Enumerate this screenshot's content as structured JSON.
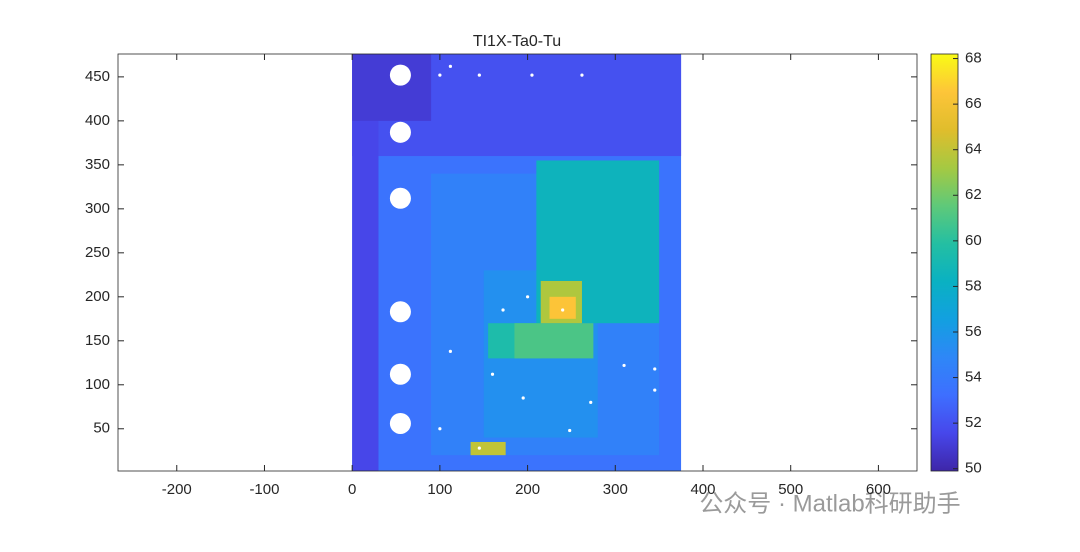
{
  "chart_data": {
    "type": "heatmap",
    "title": "TI1X-Ta0-Tu",
    "xlim": [
      -267,
      644
    ],
    "ylim": [
      2,
      476
    ],
    "xticks": [
      -200,
      -100,
      0,
      100,
      200,
      300,
      400,
      500,
      600
    ],
    "yticks": [
      50,
      100,
      150,
      200,
      250,
      300,
      350,
      400,
      450
    ],
    "colormap": "parula",
    "clim": [
      49.9,
      68.2
    ],
    "cticks": [
      50,
      52,
      54,
      56,
      58,
      60,
      62,
      64,
      66,
      68
    ],
    "regions": [
      {
        "x": [
          0,
          375
        ],
        "y": [
          2,
          476
        ],
        "value": 53.5
      },
      {
        "x": [
          0,
          375
        ],
        "y": [
          360,
          476
        ],
        "value": 52
      },
      {
        "x": [
          0,
          30
        ],
        "y": [
          2,
          476
        ],
        "value": 51.5
      },
      {
        "x": [
          0,
          90
        ],
        "y": [
          400,
          476
        ],
        "value": 51
      },
      {
        "x": [
          90,
          350
        ],
        "y": [
          20,
          340
        ],
        "value": 54.5
      },
      {
        "x": [
          150,
          280
        ],
        "y": [
          40,
          230
        ],
        "value": 55.5
      },
      {
        "x": [
          210,
          350
        ],
        "y": [
          170,
          355
        ],
        "value": 58.5
      },
      {
        "x": [
          155,
          215
        ],
        "y": [
          130,
          170
        ],
        "value": 59.5
      },
      {
        "x": [
          185,
          275
        ],
        "y": [
          130,
          170
        ],
        "value": 61
      },
      {
        "x": [
          215,
          262
        ],
        "y": [
          170,
          218
        ],
        "value": 63.5
      },
      {
        "x": [
          225,
          255
        ],
        "y": [
          175,
          200
        ],
        "value": 66.5
      },
      {
        "x": [
          135,
          175
        ],
        "y": [
          20,
          35
        ],
        "value": 64
      }
    ],
    "holes": [
      {
        "x": 55,
        "y": 452,
        "r": 12
      },
      {
        "x": 55,
        "y": 387,
        "r": 12
      },
      {
        "x": 55,
        "y": 312,
        "r": 12
      },
      {
        "x": 55,
        "y": 183,
        "r": 12
      },
      {
        "x": 55,
        "y": 112,
        "r": 12
      },
      {
        "x": 55,
        "y": 56,
        "r": 12
      }
    ],
    "sensors": [
      {
        "x": 100,
        "y": 452
      },
      {
        "x": 112,
        "y": 462
      },
      {
        "x": 145,
        "y": 452
      },
      {
        "x": 205,
        "y": 452
      },
      {
        "x": 262,
        "y": 452
      },
      {
        "x": 172,
        "y": 185
      },
      {
        "x": 200,
        "y": 200
      },
      {
        "x": 240,
        "y": 185
      },
      {
        "x": 112,
        "y": 138
      },
      {
        "x": 160,
        "y": 112
      },
      {
        "x": 195,
        "y": 85
      },
      {
        "x": 100,
        "y": 50
      },
      {
        "x": 248,
        "y": 48
      },
      {
        "x": 310,
        "y": 122
      },
      {
        "x": 345,
        "y": 118
      },
      {
        "x": 345,
        "y": 94
      },
      {
        "x": 272,
        "y": 80
      },
      {
        "x": 145,
        "y": 28
      }
    ],
    "watermark": "公众号 · Matlab科研助手"
  }
}
